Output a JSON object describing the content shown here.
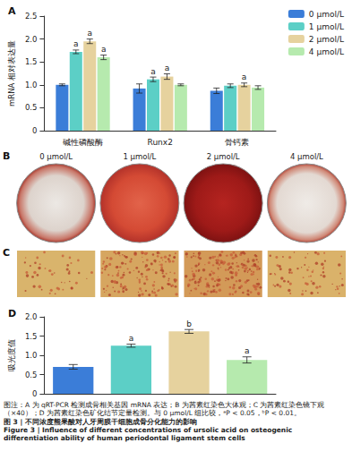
{
  "chart_data": [
    {
      "panel": "A",
      "type": "bar",
      "categories": [
        "碱性磷酸酶",
        "Runx2",
        "骨钙素"
      ],
      "y_label": "mRNA 相对表达量",
      "ylim": [
        0,
        2.5
      ],
      "yticks": [
        0,
        0.5,
        {
          "value": 1,
          "label": "1.0"
        },
        1.5,
        {
          "value": 2,
          "label": "2.0"
        },
        2.5
      ],
      "legend": "upper right",
      "series": [
        {
          "name": "0 μmol/L",
          "color": "#3b7dd8",
          "values": [
            1.0,
            0.92,
            0.87
          ],
          "errors": [
            0.02,
            0.1,
            0.06
          ]
        },
        {
          "name": "1 μmol/L",
          "color": "#5ccfc6",
          "values": [
            1.72,
            1.12,
            0.98
          ],
          "errors": [
            0.04,
            0.05,
            0.04
          ],
          "significance": [
            "a",
            "a",
            null
          ]
        },
        {
          "name": "2 μmol/L",
          "color": "#e6d29e",
          "values": [
            1.95,
            1.18,
            1.0
          ],
          "errors": [
            0.05,
            0.06,
            0.04
          ],
          "significance": [
            "a",
            "a",
            "a"
          ]
        },
        {
          "name": "4 μmol/L",
          "color": "#b6eaae",
          "values": [
            1.6,
            1.0,
            0.94
          ],
          "errors": [
            0.05,
            0.02,
            0.04
          ],
          "significance": [
            "a",
            null,
            null
          ]
        }
      ]
    },
    {
      "panel": "D",
      "type": "bar",
      "categories": [
        null,
        null,
        null,
        null
      ],
      "values": [
        0.7,
        1.25,
        1.62,
        0.88
      ],
      "errors": [
        0.06,
        0.04,
        0.05,
        0.08
      ],
      "significance": [
        null,
        "a",
        "b",
        "a"
      ],
      "colors": [
        "#3b7dd8",
        "#5ccfc6",
        "#e6d29e",
        "#b6eaae"
      ],
      "y_label": "吸光度值",
      "ylim": [
        0,
        2
      ],
      "yticks": [
        0,
        0.5,
        {
          "value": 1,
          "label": "1.0"
        },
        1.5,
        {
          "value": 2,
          "label": "2.0"
        }
      ],
      "tick_labels": "y"
    }
  ],
  "images": [
    {
      "panel": "B",
      "labels": [
        "0 μmol/L",
        "1 μmol/L",
        "2 μmol/L",
        "4 μmol/L"
      ]
    },
    {
      "panel": "C"
    }
  ],
  "caption": {
    "note": "图注：A 为 qRT-PCR 检测成骨相关基因 mRNA 表达；B 为茜素红染色大体观；C 为茜素红染色镜下观（×40）；D 为茜素红染色矿化结节定量检测。与 0 μmol/L 组比较，ᵃP < 0.05，ᵇP < 0.01。",
    "title": "图 3 | 不同浓度熊果酸对人牙周膜干细胞成骨分化能力的影响",
    "title_en": "Figure 3 | Influence of different concentrations of ursolic acid on osteogenic differentiation ability of human periodontal ligament stem cells"
  }
}
